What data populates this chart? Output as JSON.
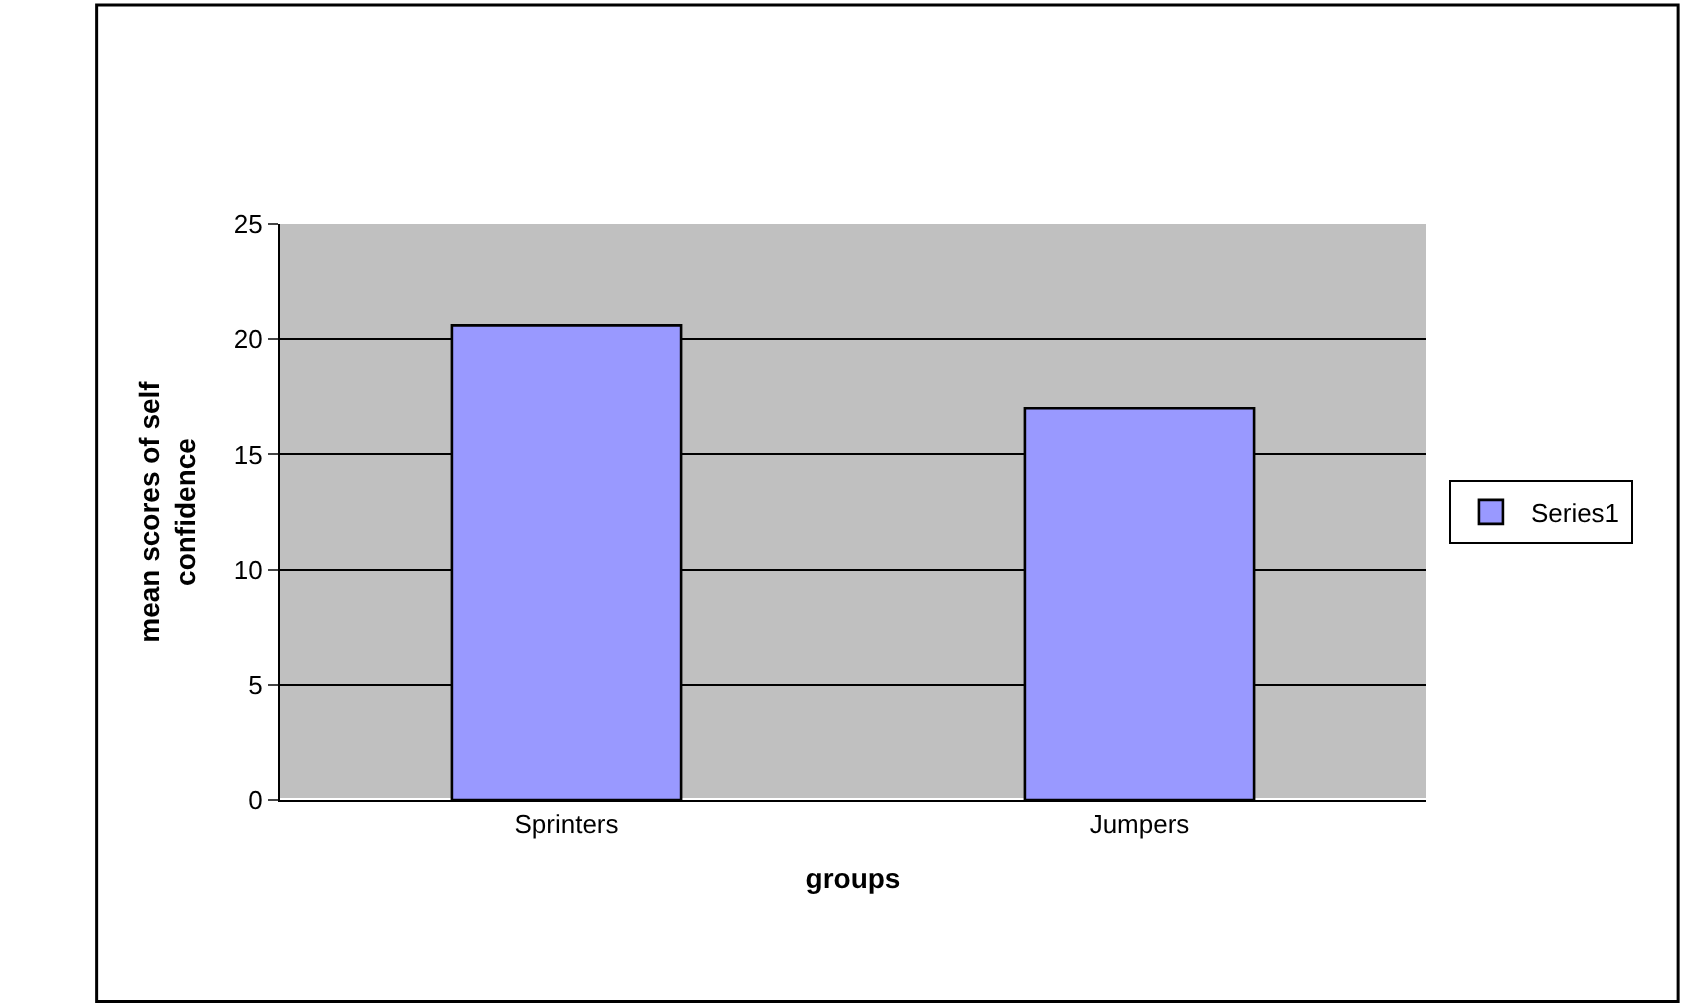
{
  "chart_data": {
    "type": "bar",
    "xlabel": "groups",
    "ylabel": "mean scores of self confidence",
    "categories": [
      "Sprinters",
      "Jumpers"
    ],
    "series": [
      {
        "name": "Series1",
        "color": "#9999ff",
        "values": [
          20.6,
          17.0
        ]
      }
    ],
    "ylim": [
      0,
      25
    ],
    "yticks": [
      0,
      5,
      10,
      15,
      20,
      25
    ],
    "grid": "y",
    "legend": "right"
  }
}
